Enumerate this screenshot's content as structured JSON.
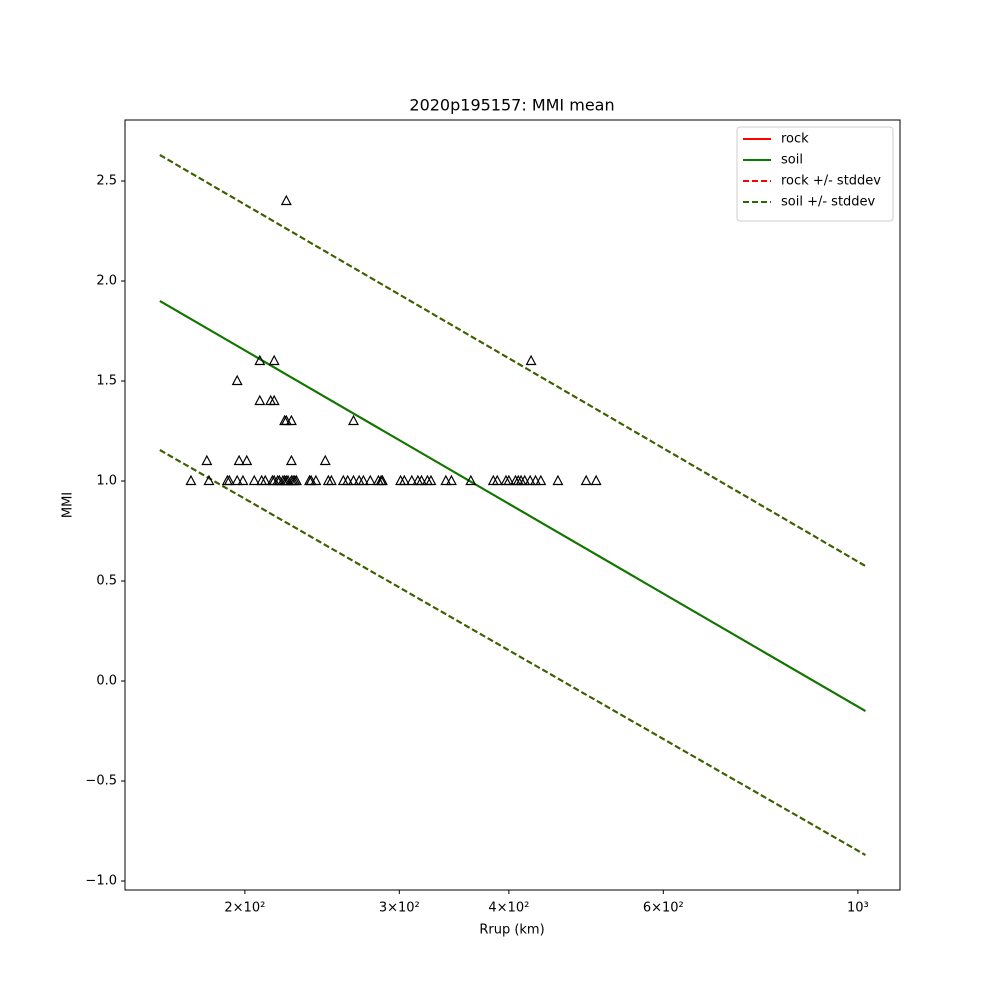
{
  "chart_data": {
    "type": "line",
    "title": "2020p195157: MMI mean",
    "xlabel": "Rrup (km)",
    "ylabel": "MMI",
    "xscale": "log",
    "xlim": [
      146,
      1117
    ],
    "ylim": [
      -1.045,
      2.805
    ],
    "xticks": [
      {
        "value": 200,
        "label": "2×10²"
      },
      {
        "value": 300,
        "label": "3×10²"
      },
      {
        "value": 400,
        "label": "4×10²"
      },
      {
        "value": 600,
        "label": "6×10²"
      },
      {
        "value": 1000,
        "label": "10³"
      }
    ],
    "yticks": [
      {
        "value": -1,
        "label": "−1.0"
      },
      {
        "value": -0.5,
        "label": "−0.5"
      },
      {
        "value": 0,
        "label": "0.0"
      },
      {
        "value": 0.5,
        "label": "0.5"
      },
      {
        "value": 1,
        "label": "1.0"
      },
      {
        "value": 1.5,
        "label": "1.5"
      },
      {
        "value": 2,
        "label": "2.0"
      },
      {
        "value": 2.5,
        "label": "2.5"
      }
    ],
    "legend": "upper right",
    "x": [
      160,
      1020
    ],
    "series": [
      {
        "name": "rock",
        "color": "#ff0000",
        "dashed": false,
        "values": [
          1.9,
          -0.15
        ]
      },
      {
        "name": "soil",
        "color": "#007f00",
        "dashed": false,
        "values": [
          1.9,
          -0.15
        ]
      },
      {
        "name": "rock +/- stddev",
        "color": "#ff0000",
        "dashed": true,
        "values": [
          2.63,
          0.575
        ],
        "lower": [
          1.155,
          -0.87
        ]
      },
      {
        "name": "soil +/- stddev",
        "color": "#2a6a00",
        "dashed": true,
        "values": [
          2.63,
          0.575
        ],
        "lower": [
          1.155,
          -0.87
        ]
      }
    ],
    "points": {
      "color": "#000000",
      "x": [
        173.6,
        182,
        191,
        192,
        196,
        199,
        205,
        209,
        211,
        215,
        216,
        218,
        219,
        221,
        222,
        223,
        224,
        226,
        227,
        228,
        229,
        237,
        238,
        241,
        249,
        251,
        259,
        262,
        266,
        270,
        273,
        278,
        284,
        286,
        287,
        301,
        304,
        310,
        315,
        318,
        323,
        326,
        339,
        344,
        362,
        384,
        388,
        397,
        400,
        407,
        410,
        413,
        417,
        423,
        429,
        435,
        455,
        490,
        503,
        181,
        197,
        201,
        226,
        247,
        222,
        223,
        226,
        266,
        208,
        214,
        216,
        196,
        208,
        216,
        424,
        223
      ],
      "values": [
        1,
        1,
        1,
        1,
        1,
        1,
        1,
        1,
        1,
        1,
        1,
        1,
        1,
        1,
        1,
        1,
        1,
        1,
        1,
        1,
        1,
        1,
        1,
        1,
        1,
        1,
        1,
        1,
        1,
        1,
        1,
        1,
        1,
        1,
        1,
        1,
        1,
        1,
        1,
        1,
        1,
        1,
        1,
        1,
        1,
        1,
        1,
        1,
        1,
        1,
        1,
        1,
        1,
        1,
        1,
        1,
        1,
        1,
        1,
        1.1,
        1.1,
        1.1,
        1.1,
        1.1,
        1.3,
        1.3,
        1.3,
        1.3,
        1.4,
        1.4,
        1.4,
        1.5,
        1.6,
        1.6,
        1.6,
        2.4
      ]
    }
  }
}
